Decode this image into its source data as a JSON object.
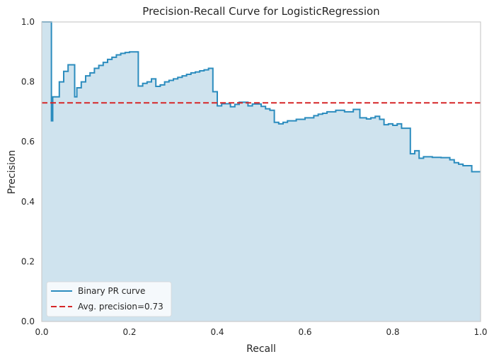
{
  "chart_data": {
    "type": "area",
    "title": "Precision-Recall Curve for LogisticRegression",
    "xlabel": "Recall",
    "ylabel": "Precision",
    "xlim": [
      0,
      1
    ],
    "ylim": [
      0,
      1
    ],
    "xticks": [
      "0.0",
      "0.2",
      "0.4",
      "0.6",
      "0.8",
      "1.0"
    ],
    "yticks": [
      "0.0",
      "0.2",
      "0.4",
      "0.6",
      "0.8",
      "1.0"
    ],
    "grid": false,
    "legend_position": "lower-left",
    "series": [
      {
        "name": "Binary PR curve",
        "kind": "step",
        "color": "#2b8cbe",
        "fill_color": "#cfe3ee",
        "points": [
          [
            0.0,
            1.0
          ],
          [
            0.022,
            1.0
          ],
          [
            0.022,
            0.67
          ],
          [
            0.025,
            0.67
          ],
          [
            0.025,
            0.75
          ],
          [
            0.04,
            0.75
          ],
          [
            0.04,
            0.8
          ],
          [
            0.05,
            0.8
          ],
          [
            0.05,
            0.835
          ],
          [
            0.06,
            0.835
          ],
          [
            0.06,
            0.857
          ],
          [
            0.075,
            0.857
          ],
          [
            0.075,
            0.75
          ],
          [
            0.08,
            0.75
          ],
          [
            0.08,
            0.78
          ],
          [
            0.09,
            0.78
          ],
          [
            0.09,
            0.8
          ],
          [
            0.1,
            0.8
          ],
          [
            0.1,
            0.82
          ],
          [
            0.11,
            0.82
          ],
          [
            0.11,
            0.83
          ],
          [
            0.12,
            0.83
          ],
          [
            0.12,
            0.845
          ],
          [
            0.13,
            0.845
          ],
          [
            0.13,
            0.855
          ],
          [
            0.14,
            0.855
          ],
          [
            0.14,
            0.865
          ],
          [
            0.15,
            0.865
          ],
          [
            0.15,
            0.875
          ],
          [
            0.16,
            0.875
          ],
          [
            0.16,
            0.882
          ],
          [
            0.17,
            0.882
          ],
          [
            0.17,
            0.89
          ],
          [
            0.18,
            0.89
          ],
          [
            0.18,
            0.895
          ],
          [
            0.19,
            0.895
          ],
          [
            0.19,
            0.898
          ],
          [
            0.2,
            0.898
          ],
          [
            0.2,
            0.9
          ],
          [
            0.22,
            0.9
          ],
          [
            0.22,
            0.786
          ],
          [
            0.23,
            0.786
          ],
          [
            0.23,
            0.795
          ],
          [
            0.24,
            0.795
          ],
          [
            0.24,
            0.8
          ],
          [
            0.25,
            0.8
          ],
          [
            0.25,
            0.81
          ],
          [
            0.26,
            0.81
          ],
          [
            0.26,
            0.785
          ],
          [
            0.27,
            0.785
          ],
          [
            0.27,
            0.79
          ],
          [
            0.28,
            0.79
          ],
          [
            0.28,
            0.8
          ],
          [
            0.29,
            0.8
          ],
          [
            0.29,
            0.805
          ],
          [
            0.3,
            0.805
          ],
          [
            0.3,
            0.81
          ],
          [
            0.31,
            0.81
          ],
          [
            0.31,
            0.815
          ],
          [
            0.32,
            0.815
          ],
          [
            0.32,
            0.82
          ],
          [
            0.33,
            0.82
          ],
          [
            0.33,
            0.825
          ],
          [
            0.34,
            0.825
          ],
          [
            0.34,
            0.83
          ],
          [
            0.35,
            0.83
          ],
          [
            0.35,
            0.833
          ],
          [
            0.36,
            0.833
          ],
          [
            0.36,
            0.837
          ],
          [
            0.37,
            0.837
          ],
          [
            0.37,
            0.84
          ],
          [
            0.38,
            0.84
          ],
          [
            0.38,
            0.845
          ],
          [
            0.39,
            0.845
          ],
          [
            0.39,
            0.767
          ],
          [
            0.4,
            0.767
          ],
          [
            0.4,
            0.72
          ],
          [
            0.41,
            0.72
          ],
          [
            0.41,
            0.727
          ],
          [
            0.43,
            0.727
          ],
          [
            0.43,
            0.717
          ],
          [
            0.44,
            0.717
          ],
          [
            0.44,
            0.725
          ],
          [
            0.45,
            0.725
          ],
          [
            0.45,
            0.732
          ],
          [
            0.47,
            0.732
          ],
          [
            0.47,
            0.72
          ],
          [
            0.48,
            0.72
          ],
          [
            0.48,
            0.726
          ],
          [
            0.5,
            0.726
          ],
          [
            0.5,
            0.718
          ],
          [
            0.51,
            0.718
          ],
          [
            0.51,
            0.71
          ],
          [
            0.52,
            0.71
          ],
          [
            0.52,
            0.705
          ],
          [
            0.53,
            0.705
          ],
          [
            0.53,
            0.665
          ],
          [
            0.54,
            0.665
          ],
          [
            0.54,
            0.66
          ],
          [
            0.55,
            0.66
          ],
          [
            0.55,
            0.665
          ],
          [
            0.56,
            0.665
          ],
          [
            0.56,
            0.67
          ],
          [
            0.58,
            0.67
          ],
          [
            0.58,
            0.675
          ],
          [
            0.6,
            0.675
          ],
          [
            0.6,
            0.68
          ],
          [
            0.62,
            0.68
          ],
          [
            0.62,
            0.687
          ],
          [
            0.63,
            0.687
          ],
          [
            0.63,
            0.692
          ],
          [
            0.64,
            0.692
          ],
          [
            0.64,
            0.695
          ],
          [
            0.65,
            0.695
          ],
          [
            0.65,
            0.7
          ],
          [
            0.67,
            0.7
          ],
          [
            0.67,
            0.705
          ],
          [
            0.69,
            0.705
          ],
          [
            0.69,
            0.7
          ],
          [
            0.71,
            0.7
          ],
          [
            0.71,
            0.708
          ],
          [
            0.725,
            0.708
          ],
          [
            0.725,
            0.68
          ],
          [
            0.74,
            0.68
          ],
          [
            0.74,
            0.676
          ],
          [
            0.75,
            0.676
          ],
          [
            0.75,
            0.68
          ],
          [
            0.76,
            0.68
          ],
          [
            0.76,
            0.685
          ],
          [
            0.77,
            0.685
          ],
          [
            0.77,
            0.675
          ],
          [
            0.78,
            0.675
          ],
          [
            0.78,
            0.657
          ],
          [
            0.79,
            0.657
          ],
          [
            0.79,
            0.66
          ],
          [
            0.8,
            0.66
          ],
          [
            0.8,
            0.655
          ],
          [
            0.81,
            0.655
          ],
          [
            0.81,
            0.66
          ],
          [
            0.82,
            0.66
          ],
          [
            0.82,
            0.645
          ],
          [
            0.84,
            0.645
          ],
          [
            0.84,
            0.56
          ],
          [
            0.85,
            0.56
          ],
          [
            0.85,
            0.57
          ],
          [
            0.86,
            0.57
          ],
          [
            0.86,
            0.545
          ],
          [
            0.87,
            0.545
          ],
          [
            0.87,
            0.55
          ],
          [
            0.89,
            0.55
          ],
          [
            0.89,
            0.548
          ],
          [
            0.91,
            0.548
          ],
          [
            0.91,
            0.547
          ],
          [
            0.93,
            0.547
          ],
          [
            0.93,
            0.54
          ],
          [
            0.94,
            0.54
          ],
          [
            0.94,
            0.53
          ],
          [
            0.95,
            0.53
          ],
          [
            0.95,
            0.525
          ],
          [
            0.96,
            0.525
          ],
          [
            0.96,
            0.52
          ],
          [
            0.98,
            0.52
          ],
          [
            0.98,
            0.5
          ],
          [
            1.0,
            0.5
          ]
        ]
      },
      {
        "name": "Avg. precision=0.73",
        "kind": "hline",
        "color": "#d62728",
        "y": 0.73,
        "style": "dashed"
      }
    ]
  }
}
